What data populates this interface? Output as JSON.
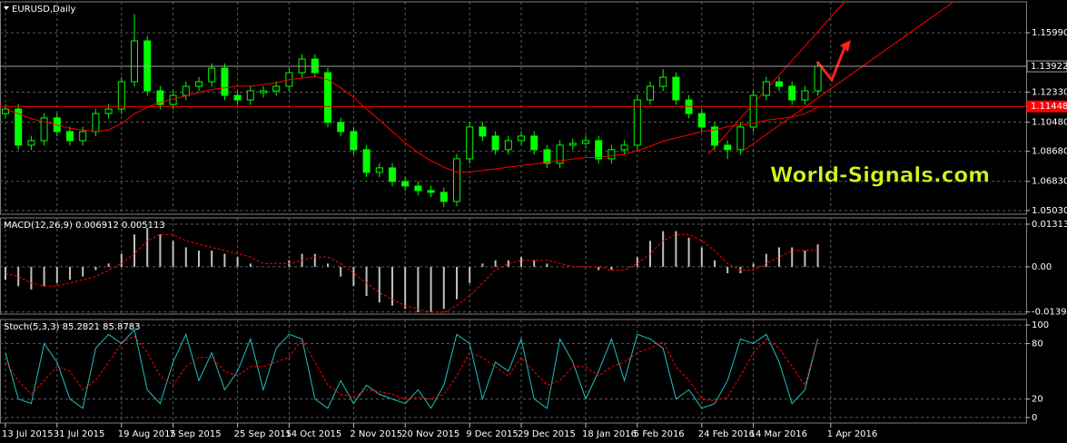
{
  "chart_data": [
    {
      "type": "candlestick",
      "title": "EURUSD,Daily",
      "watermark": "World-Signals.com",
      "categories": [
        "13 Jul 2015",
        null,
        null,
        null,
        "31 Jul 2015",
        null,
        null,
        null,
        null,
        "19 Aug 2015",
        null,
        null,
        null,
        "7 Sep 2015",
        null,
        null,
        null,
        null,
        "25 Sep 2015",
        null,
        null,
        null,
        "14 Oct 2015",
        null,
        null,
        null,
        null,
        "2 Nov 2015",
        null,
        null,
        null,
        "20 Nov 2015",
        null,
        null,
        null,
        null,
        "9 Dec 2015",
        null,
        null,
        null,
        "29 Dec 2015",
        null,
        null,
        null,
        null,
        "18 Jan 2016",
        null,
        null,
        null,
        "5 Feb 2016",
        null,
        null,
        null,
        null,
        "24 Feb 2016",
        null,
        null,
        null,
        "14 Mar 2016",
        null,
        null,
        null,
        null,
        null,
        "1 Apr 2016"
      ],
      "open": [
        1.11,
        1.1129,
        1.0906,
        1.0934,
        1.1074,
        1.099,
        1.0934,
        1.099,
        1.1101,
        1.1129,
        1.1297,
        1.1549,
        1.1241,
        1.1157,
        1.1213,
        1.1269,
        1.1297,
        1.1381,
        1.1213,
        1.1185,
        1.123,
        1.1241,
        1.1269,
        1.1353,
        1.1437,
        1.1353,
        1.1046,
        1.099,
        1.0878,
        1.0738,
        1.0766,
        1.0682,
        1.0654,
        1.0626,
        1.0615,
        1.0559,
        1.0822,
        1.1018,
        1.0962,
        1.0878,
        1.0934,
        1.0962,
        1.0878,
        1.0794,
        1.0906,
        1.0917,
        1.0934,
        1.0822,
        1.0878,
        1.0906,
        1.1185,
        1.1269,
        1.1325,
        1.1185,
        1.1101,
        1.1018,
        1.0906,
        1.0878,
        1.1018,
        1.1213,
        1.1297,
        1.1269,
        1.1185,
        1.1241,
        null
      ],
      "high": [
        1.1159,
        1.1159,
        1.0964,
        1.1104,
        1.1104,
        1.102,
        1.102,
        1.1131,
        1.1159,
        1.1327,
        1.1714,
        1.1579,
        1.1271,
        1.1243,
        1.1299,
        1.1327,
        1.1411,
        1.1411,
        1.1243,
        1.1271,
        1.1271,
        1.1299,
        1.1383,
        1.1467,
        1.1467,
        1.1383,
        1.1076,
        1.102,
        1.0908,
        1.0796,
        1.0796,
        1.0712,
        1.0684,
        1.0656,
        1.0645,
        1.0852,
        1.1048,
        1.1048,
        1.0992,
        1.0964,
        1.0992,
        1.0992,
        1.0908,
        1.0936,
        1.0947,
        1.0964,
        1.0964,
        1.0908,
        1.0936,
        1.1215,
        1.1299,
        1.1375,
        1.1355,
        1.1215,
        1.1131,
        1.1048,
        1.0936,
        1.1048,
        1.1243,
        1.1327,
        1.1327,
        1.1299,
        1.1271,
        1.1422,
        null
      ],
      "low": [
        1.107,
        1.0876,
        1.0876,
        1.0904,
        1.096,
        1.0904,
        1.0904,
        1.096,
        1.1071,
        1.1099,
        1.1267,
        1.1211,
        1.1127,
        1.1127,
        1.1183,
        1.1239,
        1.1267,
        1.1183,
        1.1155,
        1.1155,
        1.12,
        1.1211,
        1.1239,
        1.1323,
        1.1323,
        1.1016,
        1.096,
        1.0848,
        1.0708,
        1.0708,
        1.0652,
        1.0624,
        1.0596,
        1.0585,
        1.0524,
        1.0529,
        1.0792,
        1.0932,
        1.0848,
        1.0848,
        1.0904,
        1.0848,
        1.0764,
        1.0764,
        1.0876,
        1.0887,
        1.0792,
        1.0792,
        1.0848,
        1.0876,
        1.1155,
        1.1239,
        1.1155,
        1.1071,
        1.0988,
        1.0876,
        1.082,
        1.0848,
        1.0988,
        1.1183,
        1.1239,
        1.1155,
        1.1155,
        1.1211,
        null
      ],
      "close": [
        1.1129,
        1.0906,
        1.0934,
        1.1074,
        1.099,
        1.0934,
        1.099,
        1.1101,
        1.1129,
        1.1297,
        1.1549,
        1.1241,
        1.1157,
        1.1213,
        1.1269,
        1.1297,
        1.1381,
        1.1213,
        1.1185,
        1.1241,
        1.1241,
        1.1269,
        1.1353,
        1.1437,
        1.1353,
        1.1046,
        1.099,
        1.0878,
        1.0738,
        1.0766,
        1.0682,
        1.0654,
        1.0626,
        1.0615,
        1.0559,
        1.0822,
        1.1018,
        1.0962,
        1.0878,
        1.0934,
        1.0962,
        1.0878,
        1.0794,
        1.0906,
        1.0917,
        1.0934,
        1.0822,
        1.0878,
        1.0906,
        1.1185,
        1.1269,
        1.1325,
        1.1185,
        1.1101,
        1.1018,
        1.0906,
        1.0878,
        1.1018,
        1.1213,
        1.1297,
        1.1269,
        1.1185,
        1.1241,
        1.1392,
        null
      ],
      "candle_color": "#00ff00",
      "ma": {
        "color": "#ff0000",
        "values": [
          1.1129,
          1.11,
          1.107,
          1.105,
          1.103,
          1.101,
          1.1,
          1.099,
          1.1,
          1.104,
          1.11,
          1.114,
          1.117,
          1.119,
          1.121,
          1.123,
          1.125,
          1.126,
          1.127,
          1.127,
          1.128,
          1.129,
          1.131,
          1.132,
          1.133,
          1.131,
          1.126,
          1.12,
          1.113,
          1.106,
          1.099,
          1.092,
          1.086,
          1.081,
          1.077,
          1.074,
          1.074,
          1.075,
          1.076,
          1.077,
          1.078,
          1.079,
          1.08,
          1.081,
          1.082,
          1.083,
          1.083,
          1.084,
          1.085,
          1.087,
          1.09,
          1.093,
          1.095,
          1.097,
          1.099,
          1.1,
          1.102,
          1.103,
          1.104,
          1.106,
          1.107,
          1.108,
          1.11,
          1.114,
          null
        ]
      },
      "ylim": [
        1.048,
        1.179
      ],
      "yticks": [
        {
          "value": 1.0503,
          "label": "1.05030"
        },
        {
          "value": 1.0683,
          "label": "1.06830"
        },
        {
          "value": 1.0868,
          "label": "1.08680"
        },
        {
          "value": 1.1048,
          "label": "1.10480"
        },
        {
          "value": 1.1233,
          "label": "1.12330"
        },
        {
          "value": 1.1599,
          "label": "1.15990"
        }
      ],
      "price_lines": [
        {
          "value": 1.13922,
          "color": "#a0a0a0"
        },
        {
          "value": 1.11448,
          "color": "#ff0000"
        }
      ],
      "grid": true
    },
    {
      "type": "macd",
      "title": "MACD(12,26,9) 0.006912 0.005113",
      "series": [
        {
          "color": "#c0c0c0",
          "style": "histogram",
          "values": [
            -0.004,
            -0.006,
            -0.007,
            -0.006,
            -0.005,
            -0.004,
            -0.003,
            -0.001,
            0.001,
            0.004,
            0.01,
            0.012,
            0.01,
            0.008,
            0.006,
            0.005,
            0.005,
            0.004,
            0.003,
            0.001,
            0.0,
            0.0,
            0.002,
            0.004,
            0.004,
            0.001,
            -0.003,
            -0.006,
            -0.009,
            -0.011,
            -0.012,
            -0.013,
            -0.014,
            -0.014,
            -0.013,
            -0.01,
            -0.005,
            0.001,
            0.002,
            0.002,
            0.003,
            0.002,
            0.001,
            0.0,
            0.0,
            0.0,
            -0.001,
            -0.001,
            0.0,
            0.003,
            0.008,
            0.011,
            0.011,
            0.009,
            0.006,
            0.002,
            -0.002,
            -0.002,
            0.001,
            0.004,
            0.006,
            0.006,
            0.005,
            0.006912,
            null
          ]
        },
        {
          "color": "#ff0000",
          "style": "dashed",
          "values": [
            -0.002,
            -0.003,
            -0.005,
            -0.006,
            -0.006,
            -0.005,
            -0.004,
            -0.003,
            -0.001,
            0.001,
            0.004,
            0.008,
            0.01,
            0.01,
            0.008,
            0.007,
            0.006,
            0.005,
            0.004,
            0.003,
            0.001,
            0.001,
            0.001,
            0.002,
            0.003,
            0.003,
            0.001,
            -0.002,
            -0.005,
            -0.008,
            -0.01,
            -0.012,
            -0.013,
            -0.014,
            -0.014,
            -0.012,
            -0.009,
            -0.005,
            -0.001,
            0.001,
            0.002,
            0.002,
            0.002,
            0.001,
            0.0,
            0.0,
            0.0,
            -0.001,
            -0.001,
            0.001,
            0.004,
            0.008,
            0.01,
            0.01,
            0.008,
            0.005,
            0.001,
            -0.001,
            -0.001,
            0.001,
            0.003,
            0.005,
            0.005,
            0.005113,
            null
          ]
        }
      ],
      "ylim": [
        -0.0146,
        0.0151
      ],
      "yticks": [
        -0.013928,
        {
          "value": 0,
          "label": "0.00"
        },
        0.013135
      ],
      "grid": true
    },
    {
      "type": "stochastic",
      "title": "Stoch(5,3,3) 85.2821 85.8783",
      "series": [
        {
          "color": "#20c0c0",
          "style": "solid",
          "values": [
            70,
            20,
            15,
            80,
            60,
            20,
            10,
            75,
            90,
            80,
            95,
            30,
            15,
            60,
            90,
            40,
            70,
            30,
            50,
            85,
            30,
            75,
            90,
            85,
            20,
            10,
            40,
            15,
            35,
            25,
            20,
            15,
            30,
            10,
            35,
            90,
            80,
            20,
            60,
            50,
            85,
            20,
            10,
            85,
            60,
            20,
            50,
            85,
            40,
            90,
            85,
            75,
            20,
            30,
            10,
            15,
            40,
            85,
            80,
            90,
            60,
            15,
            30,
            85.2821,
            null
          ]
        },
        {
          "color": "#ff0000",
          "style": "dashed",
          "values": [
            60,
            40,
            25,
            40,
            55,
            50,
            30,
            40,
            60,
            80,
            88,
            70,
            45,
            35,
            55,
            65,
            65,
            50,
            45,
            55,
            55,
            60,
            65,
            85,
            60,
            35,
            25,
            22,
            30,
            28,
            25,
            20,
            22,
            20,
            25,
            45,
            70,
            65,
            55,
            45,
            65,
            50,
            35,
            40,
            55,
            55,
            45,
            55,
            60,
            70,
            75,
            82,
            55,
            40,
            20,
            18,
            22,
            45,
            70,
            85,
            75,
            55,
            35,
            85.8783,
            null
          ]
        }
      ],
      "ylim": [
        -6,
        106
      ],
      "yticks": [
        0,
        20,
        80,
        100
      ],
      "grid": true
    }
  ]
}
